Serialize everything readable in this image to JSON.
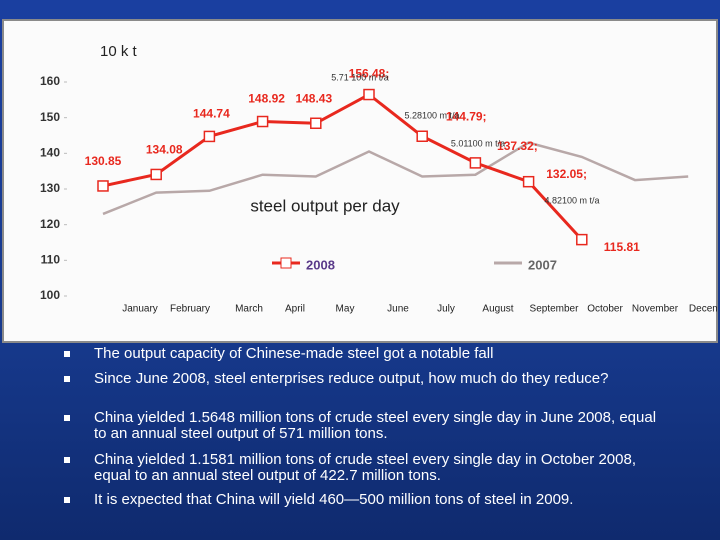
{
  "chart_data": {
    "type": "line",
    "unit_label": "10 k t",
    "categories": [
      "January",
      "February",
      "March",
      "April",
      "May",
      "June",
      "July",
      "August",
      "September",
      "October",
      "November",
      "December"
    ],
    "series": [
      {
        "name": "2008",
        "color": "#e8281e",
        "values": [
          130.85,
          134.08,
          144.74,
          148.92,
          148.43,
          156.48,
          144.79,
          137.32,
          132.05,
          115.81,
          null,
          null
        ],
        "value_labels": [
          "130.85",
          "134.08",
          "144.74",
          "148.92",
          "148.43",
          "156.48;",
          "144.79;",
          "137.32;",
          "132.05;",
          "115.81",
          null,
          null
        ]
      },
      {
        "name": "2007",
        "color": "#b8a8a8",
        "values": [
          123,
          129,
          129.5,
          134,
          133.5,
          140.5,
          133.5,
          134,
          143,
          139,
          132.5,
          133.5
        ]
      }
    ],
    "annotations": [
      "5.71 100 m t/a",
      "5.28100 m t/a",
      "5.01100 m t/a",
      "4.82100 m t/a",
      "steel output per day"
    ],
    "ylim": [
      100,
      160
    ],
    "yticks": [
      100,
      110,
      120,
      130,
      140,
      150,
      160
    ],
    "grid": false
  },
  "bullets": [
    "The output capacity of Chinese-made steel got a notable fall",
    "Since June 2008, steel enterprises reduce output, how much do they reduce?",
    "China yielded 1.5648 million tons of crude steel every single day in June 2008, equal to an annual steel output of 571 million tons.",
    "China yielded 1.1581 million tons of crude steel every single day in October 2008, equal to an annual steel output of 422.7 million tons.",
    "It is expected that China will yield 460—500 million tons of steel in 2009."
  ]
}
